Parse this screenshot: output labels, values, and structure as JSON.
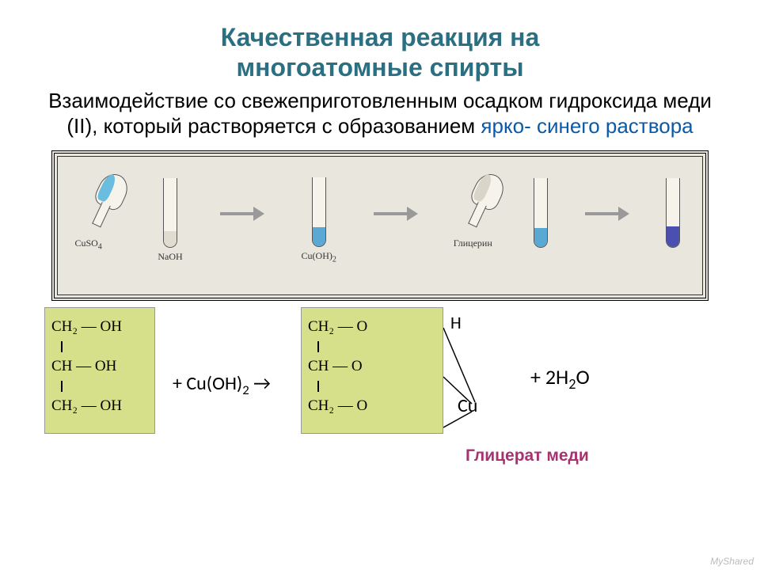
{
  "title_line1": "Качественная реакция на",
  "title_line2": "многоатомные спирты",
  "title_color": "#2b6f83",
  "subtitle_part1": "Взаимодействие со свежеприготовленным осадком гидроксида меди (II), который растворяется с образованием ",
  "subtitle_highlight": "ярко- синего раствора",
  "highlight_color": "#0a5aa8",
  "diagram": {
    "bg_color": "#e9e6dd",
    "flask1_label": "CuSO",
    "flask1_sub": "4",
    "flask1_liquid": "#6bbde0",
    "tube1_label": "NaOH",
    "tube1_liquid": "#e0ddd0",
    "tube1_height": 20,
    "tube2_label": "Cu(OH)",
    "tube2_sub": "2",
    "tube2_liquid": "#5aa8d4",
    "tube2_height": 24,
    "flask2_label": "Глицерин",
    "flask2_liquid": "#d9d6c9",
    "tube3_liquid": "#5aa8d4",
    "tube3_height": 24,
    "tube4_liquid": "#4a4fb0",
    "tube4_height": 26,
    "arrow_color": "#999999"
  },
  "equation": {
    "mol_bg": "#d6e08a",
    "glycerol_r1": "CH₂ — OH",
    "glycerol_r2": "CH — OH",
    "glycerol_r3": "CH₂ — OH",
    "plus_cu": "+ Cu(OH)",
    "plus_cu_sub": "2",
    "arrow": " →",
    "product_r1": "CH₂ — O",
    "product_r2": "CH — O",
    "product_r3": "CH₂ — O",
    "h_overlay": "H",
    "cu_label": "Cu",
    "plus_water_prefix": "+ 2H",
    "plus_water_sub": "2",
    "plus_water_suffix": "O",
    "product_name": "Глицерат меди",
    "product_name_color": "#a83270"
  },
  "logo": "MyShared"
}
